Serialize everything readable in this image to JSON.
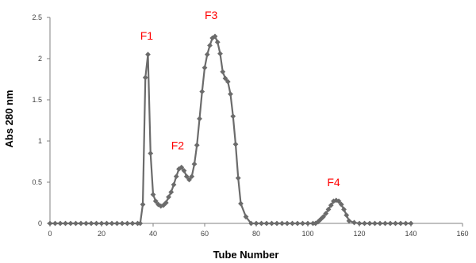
{
  "chart_data": {
    "type": "line",
    "xlabel": "Tube Number",
    "ylabel": "Abs 280 nm",
    "xlim": [
      0,
      160
    ],
    "ylim": [
      0,
      2.5
    ],
    "x_ticks": [
      "0",
      "20",
      "40",
      "60",
      "80",
      "100",
      "120",
      "140",
      "160"
    ],
    "y_ticks": [
      "0",
      "0.5",
      "1",
      "1.5",
      "2",
      "2.5"
    ],
    "grid": false,
    "legend": "none",
    "colors": {
      "series": "#6b6b6b",
      "annotation": "#ff0000",
      "axis": "#808080"
    },
    "series": [
      {
        "marker": "diamond",
        "x": [
          0,
          2,
          4,
          6,
          8,
          10,
          12,
          14,
          16,
          18,
          20,
          22,
          24,
          26,
          28,
          30,
          32,
          34,
          35,
          36,
          37,
          38,
          39,
          40,
          41,
          42,
          43,
          44,
          45,
          46,
          47,
          48,
          49,
          50,
          51,
          52,
          53,
          54,
          55,
          56,
          57,
          58,
          59,
          60,
          61,
          62,
          63,
          64,
          65,
          66,
          67,
          68,
          69,
          70,
          71,
          72,
          73,
          74,
          76,
          78,
          80,
          82,
          84,
          86,
          88,
          90,
          92,
          94,
          96,
          98,
          100,
          102,
          103,
          104,
          105,
          106,
          107,
          108,
          109,
          110,
          111,
          112,
          113,
          114,
          115,
          116,
          118,
          120,
          122,
          124,
          126,
          128,
          130,
          132,
          134,
          136,
          138,
          140
        ],
        "y": [
          0,
          0,
          0,
          0,
          0,
          0,
          0,
          0,
          0,
          0,
          0,
          0,
          0,
          0,
          0,
          0,
          0,
          0,
          0,
          0.23,
          1.77,
          2.05,
          0.85,
          0.35,
          0.27,
          0.23,
          0.21,
          0.22,
          0.25,
          0.32,
          0.38,
          0.47,
          0.57,
          0.66,
          0.68,
          0.64,
          0.57,
          0.53,
          0.57,
          0.72,
          0.95,
          1.27,
          1.6,
          1.89,
          2.05,
          2.16,
          2.25,
          2.27,
          2.2,
          2.06,
          1.84,
          1.76,
          1.72,
          1.57,
          1.3,
          0.96,
          0.55,
          0.24,
          0.08,
          0,
          0,
          0,
          0,
          0,
          0,
          0,
          0,
          0,
          0,
          0,
          0,
          0,
          0,
          0.02,
          0.05,
          0.08,
          0.12,
          0.17,
          0.22,
          0.27,
          0.28,
          0.27,
          0.23,
          0.17,
          0.1,
          0.03,
          0.01,
          0,
          0,
          0,
          0,
          0,
          0,
          0,
          0,
          0,
          0,
          0
        ]
      }
    ],
    "annotations": [
      {
        "text": "F1",
        "x": 37.5,
        "y": 2.23
      },
      {
        "text": "F2",
        "x": 49.5,
        "y": 0.9
      },
      {
        "text": "F3",
        "x": 62.5,
        "y": 2.48
      },
      {
        "text": "F4",
        "x": 110,
        "y": 0.45
      }
    ]
  }
}
